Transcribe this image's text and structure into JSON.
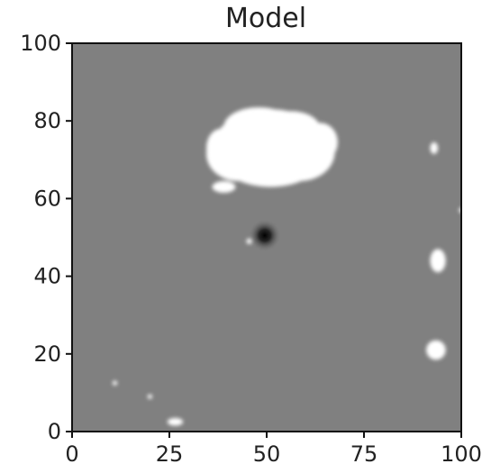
{
  "chart_data": {
    "type": "heatmap",
    "title": "Model",
    "xlabel": "",
    "ylabel": "",
    "xlim": [
      0,
      100
    ],
    "ylim": [
      0,
      100
    ],
    "x_ticks": [
      "0",
      "25",
      "50",
      "75",
      "100"
    ],
    "y_ticks": [
      "0",
      "20",
      "40",
      "60",
      "80",
      "100"
    ],
    "background_value": 0.5,
    "colormap": "gray",
    "grid": false,
    "dark_sources": [
      {
        "x": 49.5,
        "y": 50.5,
        "radius": 3
      }
    ],
    "bright_regions": [
      {
        "x": 51,
        "y": 73,
        "rx": 15,
        "ry": 10
      },
      {
        "x": 39,
        "y": 63,
        "rx": 3,
        "ry": 1.5
      },
      {
        "x": 93,
        "y": 73,
        "rx": 1,
        "ry": 1.5
      },
      {
        "x": 94,
        "y": 44,
        "rx": 2,
        "ry": 3
      },
      {
        "x": 93.5,
        "y": 21,
        "rx": 2.5,
        "ry": 2.5
      },
      {
        "x": 100,
        "y": 57,
        "rx": 0.6,
        "ry": 0.6
      },
      {
        "x": 45.5,
        "y": 49,
        "rx": 0.7,
        "ry": 0.7
      },
      {
        "x": 26.5,
        "y": 2.5,
        "rx": 2,
        "ry": 1
      },
      {
        "x": 11,
        "y": 12.5,
        "rx": 0.6,
        "ry": 0.6
      },
      {
        "x": 20,
        "y": 9,
        "rx": 0.6,
        "ry": 0.6
      }
    ]
  }
}
